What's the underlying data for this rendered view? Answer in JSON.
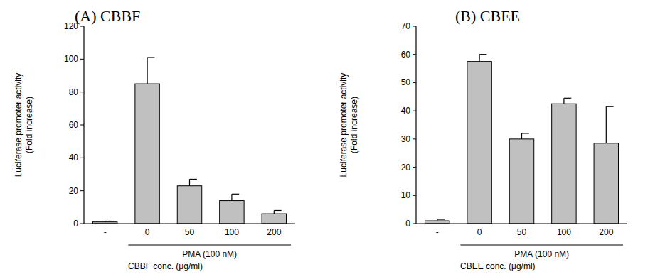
{
  "chart_data": [
    {
      "type": "bar",
      "title": "(A)  CBBF",
      "ylabel": [
        "Luciferase promoter activity",
        "(Fold increase)"
      ],
      "group_label": "PMA (100 nM)",
      "xlabel": "CBBF conc. (μg/ml)",
      "categories": [
        "-",
        "0",
        "50",
        "100",
        "200"
      ],
      "values": [
        1,
        85,
        23,
        14,
        6
      ],
      "errors": [
        0.5,
        16,
        4,
        4,
        2
      ],
      "color": "#c0c0c0",
      "ylim": [
        0,
        120
      ],
      "yticks": [
        0,
        20,
        40,
        60,
        80,
        100,
        120
      ],
      "grid": false
    },
    {
      "type": "bar",
      "title": "(B)  CBEE",
      "ylabel": [
        "Luciferase promoter activity",
        "(Fold increase)"
      ],
      "group_label": "PMA (100 nM)",
      "xlabel": "CBEE conc. (μg/ml)",
      "categories": [
        "-",
        "0",
        "50",
        "100",
        "200"
      ],
      "values": [
        1,
        57.5,
        30,
        42.5,
        28.5
      ],
      "errors": [
        0.5,
        2.5,
        2,
        2,
        13
      ],
      "color": "#c0c0c0",
      "ylim": [
        0,
        70
      ],
      "yticks": [
        0,
        10,
        20,
        30,
        40,
        50,
        60,
        70
      ],
      "grid": false
    }
  ]
}
